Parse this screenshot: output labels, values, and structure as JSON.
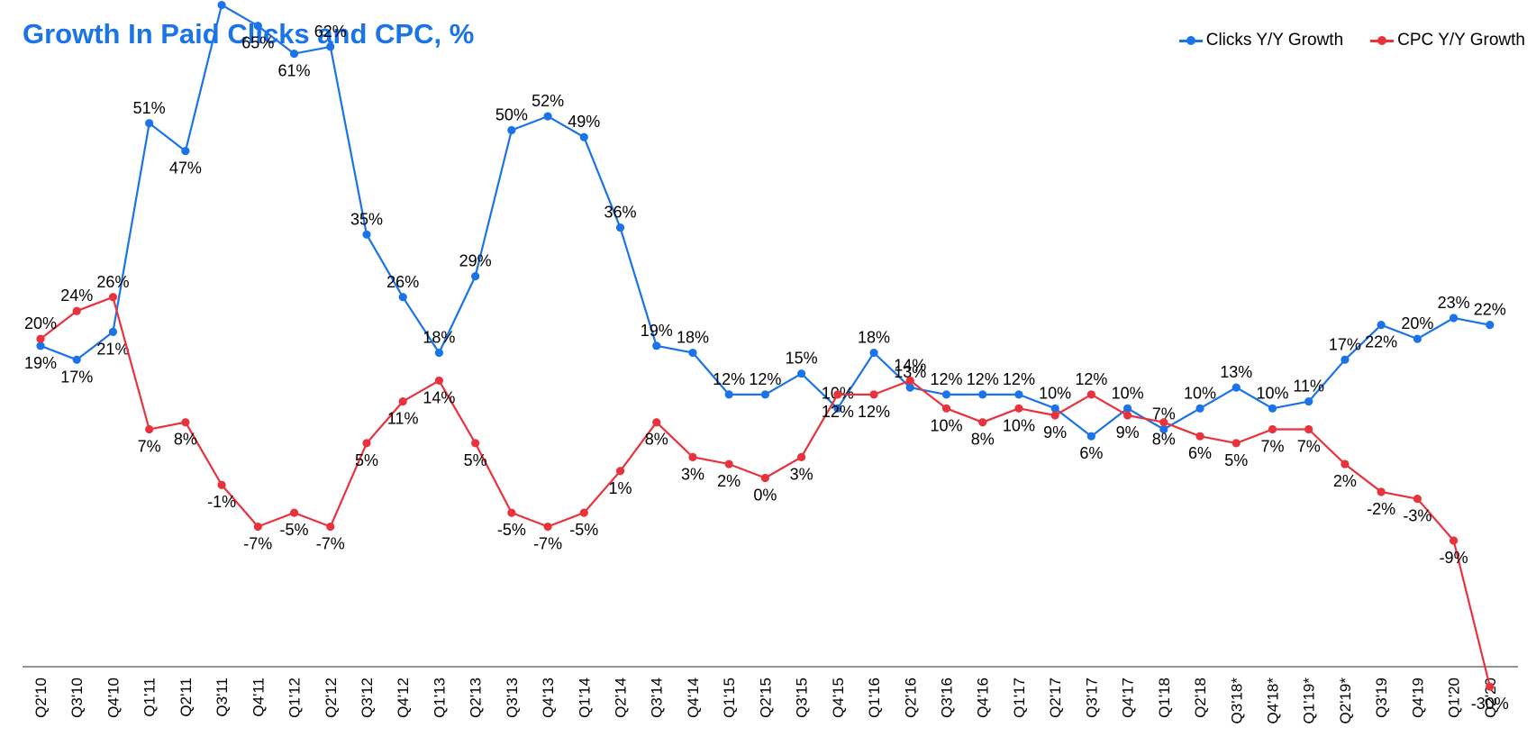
{
  "chart_data": {
    "type": "line",
    "title": "Growth In Paid Clicks and CPC, %",
    "legend_position": "top-right",
    "grid": false,
    "ylim": [
      -50,
      80
    ],
    "value_suffix": "%",
    "categories": [
      "Q2'10",
      "Q3'10",
      "Q4'10",
      "Q1'11",
      "Q2'11",
      "Q3'11",
      "Q4'11",
      "Q1'12",
      "Q2'12",
      "Q3'12",
      "Q4'12",
      "Q1'13",
      "Q2'13",
      "Q3'13",
      "Q4'13",
      "Q1'14",
      "Q2'14",
      "Q3'14",
      "Q4'14",
      "Q1'15",
      "Q2'15",
      "Q3'15",
      "Q4'15",
      "Q1'16",
      "Q2'16",
      "Q3'16",
      "Q4'16",
      "Q1'17",
      "Q2'17",
      "Q3'17",
      "Q4'17",
      "Q1'18",
      "Q2'18",
      "Q3'18*",
      "Q4'18*",
      "Q1'19*",
      "Q2'19*",
      "Q3'19",
      "Q4'19",
      "Q1'20",
      "Q2'20"
    ],
    "series": [
      {
        "name": "Clicks Y/Y Growth",
        "color": "#1a73e8",
        "values": [
          19,
          17,
          21,
          51,
          47,
          68,
          65,
          61,
          62,
          35,
          26,
          18,
          29,
          50,
          52,
          49,
          36,
          19,
          18,
          12,
          12,
          15,
          10,
          18,
          13,
          12,
          12,
          12,
          10,
          6,
          10,
          7,
          10,
          13,
          10,
          11,
          17,
          22,
          20,
          23,
          22
        ],
        "label_positions": [
          "below",
          "below",
          "below",
          "above",
          "below",
          "above",
          "below",
          "below",
          "above",
          "above",
          "above",
          "above",
          "above",
          "above",
          "above",
          "above",
          "above",
          "above",
          "above",
          "above",
          "above",
          "above",
          "above",
          "above",
          "above",
          "above",
          "above",
          "above",
          "above",
          "below",
          "above",
          "above",
          "above",
          "above",
          "above",
          "above",
          "above",
          "below",
          "above",
          "above",
          "above"
        ]
      },
      {
        "name": "CPC Y/Y Growth",
        "color": "#e8333c",
        "values": [
          20,
          24,
          26,
          7,
          8,
          -1,
          -7,
          -5,
          -7,
          5,
          11,
          14,
          5,
          -5,
          -7,
          -5,
          1,
          8,
          3,
          2,
          0,
          3,
          12,
          12,
          14,
          10,
          8,
          10,
          9,
          12,
          9,
          8,
          6,
          5,
          7,
          7,
          2,
          -2,
          -3,
          -9,
          -30
        ],
        "label_positions": [
          "above",
          "above",
          "above",
          "below",
          "below",
          "below",
          "below",
          "below",
          "below",
          "below",
          "below",
          "below",
          "below",
          "below",
          "below",
          "below",
          "below",
          "below",
          "below",
          "below",
          "below",
          "below",
          "below",
          "below",
          "above",
          "below",
          "below",
          "below",
          "below",
          "above",
          "below",
          "below",
          "below",
          "below",
          "below",
          "below",
          "below",
          "below",
          "below",
          "below",
          "below"
        ]
      }
    ]
  }
}
